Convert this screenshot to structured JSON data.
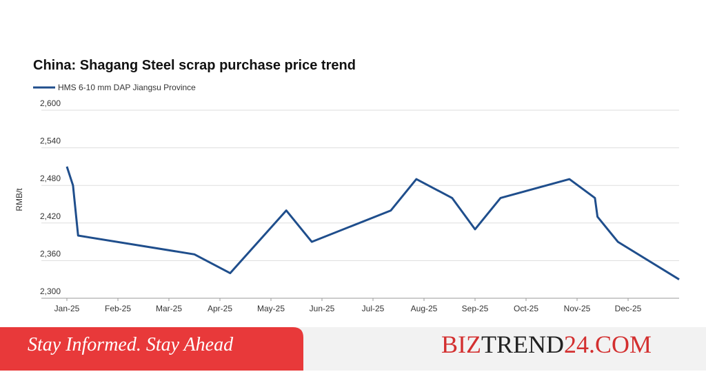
{
  "chart_data": {
    "type": "line",
    "title": "China: Shagang Steel scrap purchase price trend",
    "y_label": "RMB/t",
    "x": [
      0,
      0.12,
      0.22,
      2.5,
      3.2,
      4.3,
      4.8,
      6.35,
      6.85,
      7.55,
      8.0,
      8.5,
      9.85,
      10.35,
      10.4,
      10.8,
      12.0
    ],
    "series": [
      {
        "name": "HMS 6-10 mm DAP Jiangsu Province",
        "color": "#1f4e8c",
        "values": [
          2510,
          2480,
          2400,
          2370,
          2340,
          2440,
          2390,
          2440,
          2490,
          2460,
          2410,
          2460,
          2490,
          2460,
          2430,
          2390,
          2330
        ]
      }
    ],
    "xlim": [
      0,
      12
    ],
    "xticks": [
      {
        "value": 0,
        "label": "Jan-25"
      },
      {
        "value": 1,
        "label": "Feb-25"
      },
      {
        "value": 2,
        "label": "Mar-25"
      },
      {
        "value": 3,
        "label": "Apr-25"
      },
      {
        "value": 4,
        "label": "May-25"
      },
      {
        "value": 5,
        "label": "Jun-25"
      },
      {
        "value": 6,
        "label": "Jul-25"
      },
      {
        "value": 7,
        "label": "Aug-25"
      },
      {
        "value": 8,
        "label": "Sep-25"
      },
      {
        "value": 9,
        "label": "Oct-25"
      },
      {
        "value": 10,
        "label": "Nov-25"
      },
      {
        "value": 11,
        "label": "Dec-25"
      }
    ],
    "ylim": [
      2300,
      2600
    ],
    "yticks": [
      {
        "value": 2300,
        "label": "2,300"
      },
      {
        "value": 2360,
        "label": "2,360"
      },
      {
        "value": 2420,
        "label": "2,420"
      },
      {
        "value": 2480,
        "label": "2,480"
      },
      {
        "value": 2540,
        "label": "2,540"
      },
      {
        "value": 2600,
        "label": "2,600"
      }
    ],
    "grid": true
  },
  "banner": {
    "slogan": "Stay Informed. Stay Ahead",
    "brand": [
      "BIZ",
      "TREND",
      "24.COM"
    ]
  }
}
